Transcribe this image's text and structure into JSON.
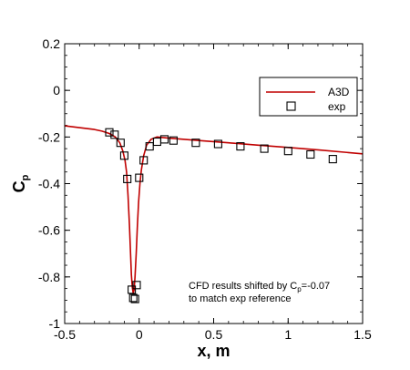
{
  "chart_data": {
    "type": "line",
    "title": "",
    "xlabel": "x, m",
    "ylabel_main": "C",
    "ylabel_sub": "p",
    "xlim": [
      -0.5,
      1.5
    ],
    "ylim": [
      -1.0,
      0.2
    ],
    "x_ticks": [
      -0.5,
      0,
      0.5,
      1,
      1.5
    ],
    "x_tick_labels": [
      "-0.5",
      "0",
      "0.5",
      "1",
      "1.5"
    ],
    "y_ticks": [
      0.2,
      0,
      -0.2,
      -0.4,
      -0.6,
      -0.8,
      -1.0
    ],
    "y_tick_labels": [
      "0.2",
      "0",
      "-0.2",
      "-0.4",
      "-0.6",
      "-0.8",
      "-1"
    ],
    "grid": false,
    "legend_position": "top-right",
    "series": [
      {
        "name": "A3D",
        "kind": "line",
        "color": "#c00000",
        "x": [
          -0.5,
          -0.4,
          -0.3,
          -0.25,
          -0.2,
          -0.16,
          -0.13,
          -0.11,
          -0.095,
          -0.085,
          -0.075,
          -0.065,
          -0.058,
          -0.052,
          -0.046,
          -0.04,
          -0.034,
          -0.028,
          -0.02,
          -0.012,
          -0.004,
          0.005,
          0.015,
          0.03,
          0.05,
          0.08,
          0.12,
          0.2,
          0.4,
          0.6,
          0.8,
          1.0,
          1.2,
          1.5
        ],
        "y": [
          -0.152,
          -0.16,
          -0.168,
          -0.175,
          -0.185,
          -0.2,
          -0.225,
          -0.26,
          -0.3,
          -0.35,
          -0.45,
          -0.58,
          -0.7,
          -0.79,
          -0.845,
          -0.87,
          -0.855,
          -0.8,
          -0.7,
          -0.58,
          -0.48,
          -0.4,
          -0.34,
          -0.28,
          -0.235,
          -0.21,
          -0.2,
          -0.205,
          -0.215,
          -0.225,
          -0.235,
          -0.245,
          -0.255,
          -0.272
        ]
      },
      {
        "name": "exp",
        "kind": "scatter",
        "marker": "square",
        "x": [
          -0.2,
          -0.165,
          -0.125,
          -0.1,
          -0.08,
          -0.05,
          -0.04,
          -0.028,
          -0.017,
          0.0,
          0.03,
          0.07,
          0.12,
          0.17,
          0.23,
          0.38,
          0.53,
          0.68,
          0.84,
          1.0,
          1.15,
          1.3
        ],
        "y": [
          -0.18,
          -0.19,
          -0.225,
          -0.28,
          -0.38,
          -0.855,
          -0.89,
          -0.895,
          -0.835,
          -0.375,
          -0.3,
          -0.24,
          -0.22,
          -0.21,
          -0.215,
          -0.225,
          -0.23,
          -0.24,
          -0.25,
          -0.26,
          -0.275,
          -0.295
        ]
      }
    ],
    "annotation": [
      "CFD results shifted by C",
      "p",
      "=-0.07",
      "to match exp reference"
    ]
  }
}
